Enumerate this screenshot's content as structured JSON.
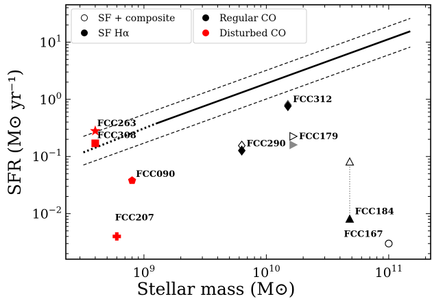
{
  "chart_data": {
    "type": "scatter",
    "x_scale": "log",
    "y_scale": "log",
    "xlim": [
      230000000.0,
      220000000000.0
    ],
    "ylim": [
      0.0016,
      45
    ],
    "xlabel": "Stellar mass (M⊙)",
    "ylabel": "SFR (M⊙ yr⁻¹)",
    "x_ticks": [
      {
        "value": 1000000000.0,
        "label_base": "10",
        "label_exp": "9"
      },
      {
        "value": 10000000000.0,
        "label_base": "10",
        "label_exp": "10"
      },
      {
        "value": 100000000000.0,
        "label_base": "10",
        "label_exp": "11"
      }
    ],
    "y_ticks": [
      {
        "value": 0.01,
        "label_base": "10",
        "label_exp": "−2"
      },
      {
        "value": 0.1,
        "label_base": "10",
        "label_exp": "−1"
      },
      {
        "value": 1,
        "label_base": "10",
        "label_exp": "0"
      },
      {
        "value": 10,
        "label_base": "10",
        "label_exp": "1"
      }
    ],
    "main_sequence": {
      "solid": [
        [
          1250000000.0,
          0.375
        ],
        [
          150000000000.0,
          15.5
        ]
      ],
      "dotted": [
        [
          320000000.0,
          0.118
        ],
        [
          1250000000.0,
          0.375
        ]
      ],
      "upper_dashed": [
        [
          320000000.0,
          0.225
        ],
        [
          150000000000.0,
          26
        ]
      ],
      "lower_dashed": [
        [
          320000000.0,
          0.071
        ],
        [
          150000000000.0,
          8.2
        ]
      ]
    },
    "legend": [
      {
        "marker": "open-circle",
        "text": "SF + composite"
      },
      {
        "marker": "filled-circle-black",
        "text": "SF Hα"
      },
      {
        "marker": "filled-circle-black",
        "text": "Regular CO"
      },
      {
        "marker": "filled-circle-red",
        "text": "Disturbed CO"
      }
    ],
    "galaxies": [
      {
        "name": "FCC263",
        "x": 400000000.0,
        "y": 0.28,
        "marker": "star",
        "color": "#ff0000",
        "filled": true
      },
      {
        "name": "FCC308",
        "x": 400000000.0,
        "y": 0.17,
        "marker": "square",
        "color": "#ff0000",
        "filled": true
      },
      {
        "name": "FCC090",
        "x": 800000000.0,
        "y": 0.038,
        "marker": "pentagon",
        "color": "#ff0000",
        "filled": true
      },
      {
        "name": "FCC207",
        "x": 600000000.0,
        "y": 0.004,
        "marker": "plus",
        "color": "#ff0000",
        "filled": true
      },
      {
        "name": "FCC290",
        "x": 6300000000.0,
        "y": 0.155,
        "marker": "diamond",
        "color": "#000000",
        "filled": false
      },
      {
        "name": "FCC290",
        "x": 6300000000.0,
        "y": 0.127,
        "marker": "diamond",
        "color": "#000000",
        "filled": true
      },
      {
        "name": "FCC312",
        "x": 15000000000.0,
        "y": 0.8,
        "marker": "diamond",
        "color": "#555555",
        "filled": false
      },
      {
        "name": "FCC312",
        "x": 15000000000.0,
        "y": 0.76,
        "marker": "diamond",
        "color": "#000000",
        "filled": true
      },
      {
        "name": "FCC179",
        "x": 16500000000.0,
        "y": 0.225,
        "marker": "triangle-right",
        "color": "#000000",
        "filled": false
      },
      {
        "name": "FCC179",
        "x": 16500000000.0,
        "y": 0.16,
        "marker": "triangle-right",
        "color": "#888888",
        "filled": true
      },
      {
        "name": "FCC184",
        "x": 48000000000.0,
        "y": 0.08,
        "marker": "triangle-up",
        "color": "#000000",
        "filled": false
      },
      {
        "name": "FCC184",
        "x": 48000000000.0,
        "y": 0.008,
        "marker": "triangle-up",
        "color": "#000000",
        "filled": true
      },
      {
        "name": "FCC167",
        "x": 100000000000.0,
        "y": 0.003,
        "marker": "circle",
        "color": "#000000",
        "filled": false
      }
    ],
    "connectors": [
      {
        "from": [
          48000000000.0,
          0.073
        ],
        "to": [
          48000000000.0,
          0.0098
        ]
      }
    ],
    "labels": [
      {
        "text": "FCC263",
        "x": 415000000.0,
        "y": 0.34
      },
      {
        "text": "FCC308",
        "x": 415000000.0,
        "y": 0.21
      },
      {
        "text": "FCC090",
        "x": 860000000.0,
        "y": 0.044
      },
      {
        "text": "FCC207",
        "x": 580000000.0,
        "y": 0.0076
      },
      {
        "text": "FCC290",
        "x": 6900000000.0,
        "y": 0.15
      },
      {
        "text": "FCC312",
        "x": 16500000000.0,
        "y": 0.89
      },
      {
        "text": "FCC179",
        "x": 18500000000.0,
        "y": 0.2
      },
      {
        "text": "FCC184",
        "x": 53000000000.0,
        "y": 0.0098
      },
      {
        "text": "FCC167",
        "x": 43000000000.0,
        "y": 0.0039
      }
    ]
  }
}
